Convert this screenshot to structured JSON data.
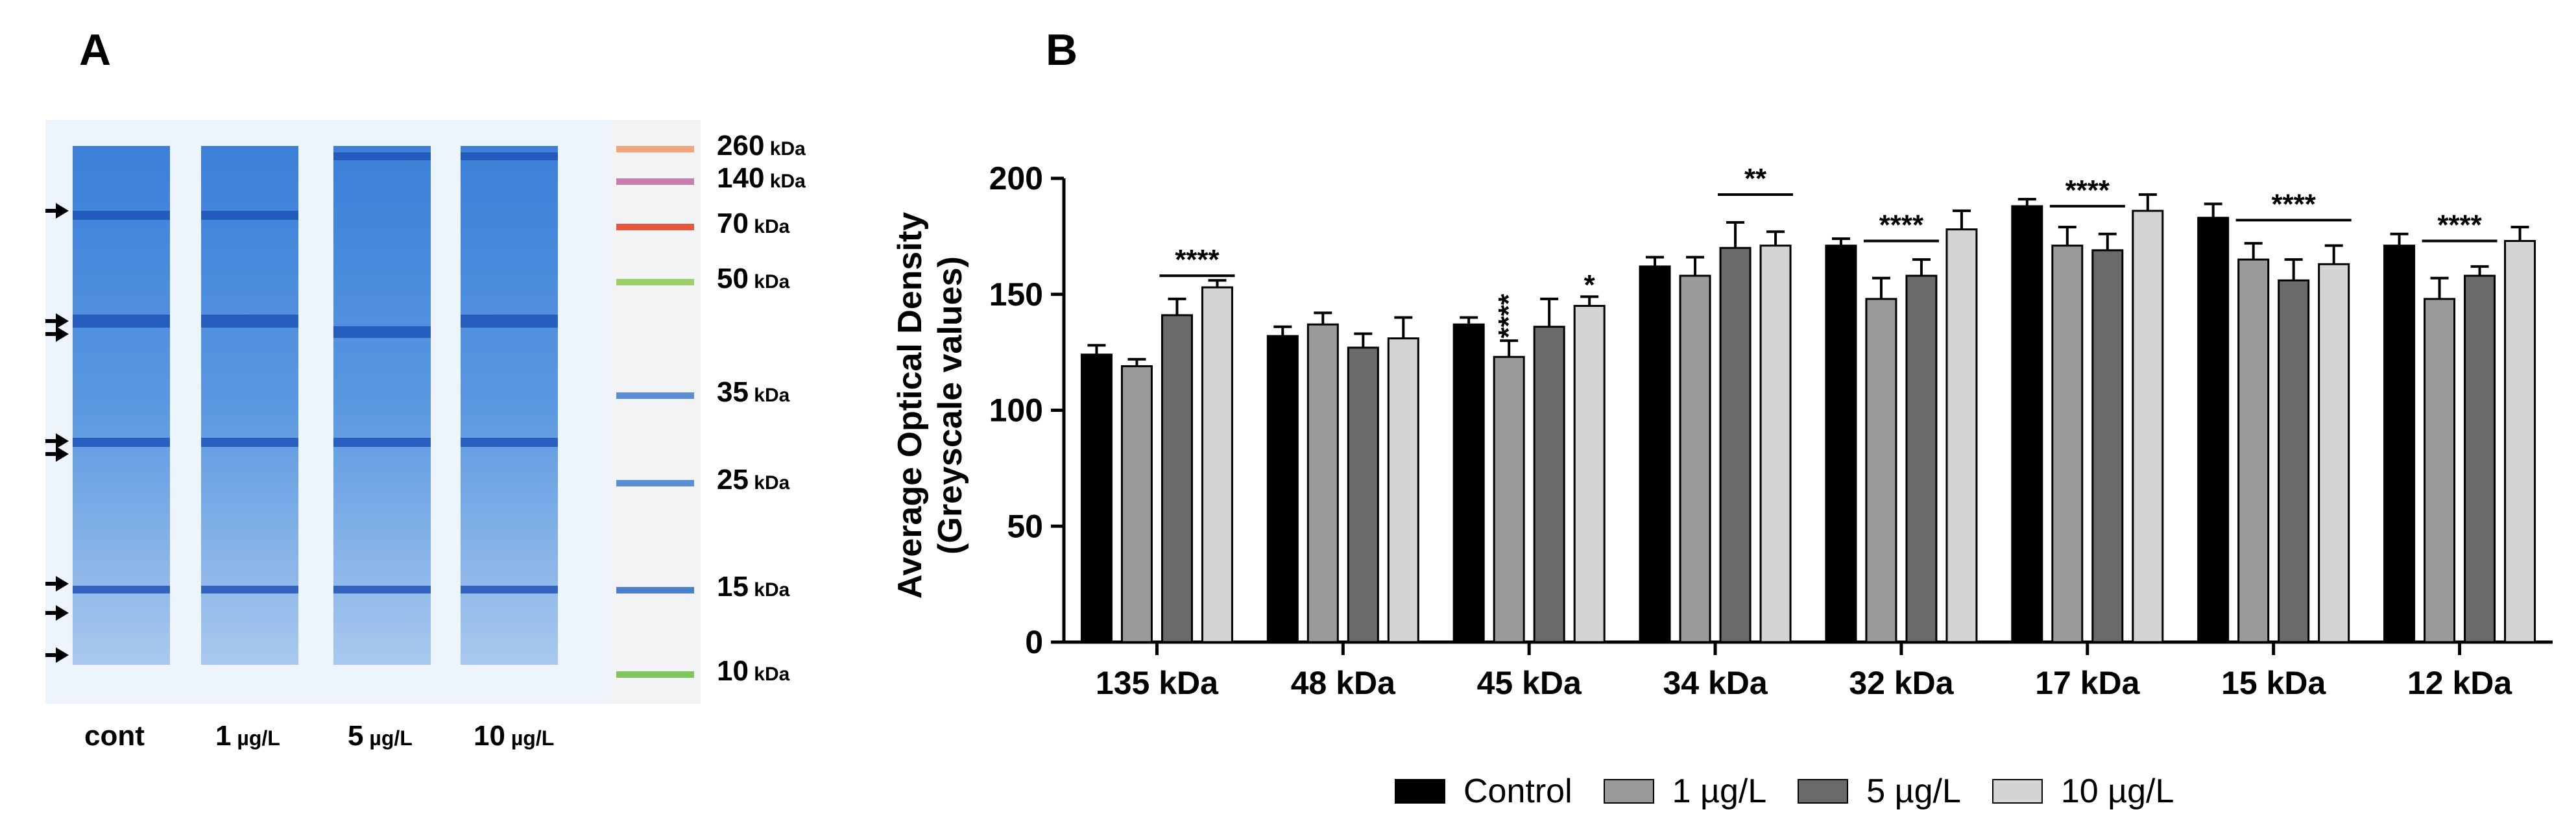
{
  "panels": {
    "a_label": "A",
    "b_label": "B"
  },
  "gel": {
    "marker_bands": [
      {
        "size": "260",
        "unit": "kDa",
        "color": "#f4a47a"
      },
      {
        "size": "140",
        "unit": "kDa",
        "color": "#c77bb0"
      },
      {
        "size": "70",
        "unit": "kDa",
        "color": "#e8573a"
      },
      {
        "size": "50",
        "unit": "kDa",
        "color": "#9fcf6a"
      },
      {
        "size": "35",
        "unit": "kDa",
        "color": "#5a8fd6"
      },
      {
        "size": "25",
        "unit": "kDa",
        "color": "#5a8fd6"
      },
      {
        "size": "15",
        "unit": "kDa",
        "color": "#4a7fcc"
      },
      {
        "size": "10",
        "unit": "kDa",
        "color": "#7cc85a"
      }
    ],
    "lanes": [
      {
        "label": "cont",
        "unit": ""
      },
      {
        "label": "1",
        "unit": "µg/L"
      },
      {
        "label": "5",
        "unit": "µg/L"
      },
      {
        "label": "10",
        "unit": "µg/L"
      }
    ],
    "arrow_count": 8
  },
  "chart_data": {
    "type": "bar",
    "ylabel_line1": "Average Optical Density",
    "ylabel_line2": "(Greyscale values)",
    "ylim": [
      0,
      200
    ],
    "yticks": [
      "0",
      "50",
      "100",
      "150",
      "200"
    ],
    "categories": [
      "135 kDa",
      "48 kDa",
      "45 kDa",
      "34 kDa",
      "32 kDa",
      "17 kDa",
      "15 kDa",
      "12 kDa"
    ],
    "series": [
      {
        "name": "Control",
        "color": "#000000",
        "values": [
          124,
          132,
          137,
          162,
          171,
          188,
          183,
          171
        ],
        "errors": [
          4,
          4,
          3,
          4,
          3,
          3,
          6,
          5
        ]
      },
      {
        "name": "1 µg/L",
        "color": "#9a9a9a",
        "values": [
          119,
          137,
          123,
          158,
          148,
          171,
          165,
          148
        ],
        "errors": [
          3,
          5,
          7,
          8,
          9,
          8,
          7,
          9
        ]
      },
      {
        "name": "5 µg/L",
        "color": "#6a6a6a",
        "values": [
          141,
          127,
          136,
          170,
          158,
          169,
          156,
          158
        ],
        "errors": [
          7,
          6,
          12,
          11,
          7,
          7,
          9,
          4
        ]
      },
      {
        "name": "10 µg/L",
        "color": "#d4d4d4",
        "values": [
          153,
          131,
          145,
          171,
          178,
          186,
          163,
          173
        ],
        "errors": [
          3,
          9,
          4,
          6,
          8,
          7,
          8,
          6
        ]
      }
    ],
    "significance": [
      {
        "category": 0,
        "text": "****",
        "type": "bracket",
        "from": 2,
        "to": 3,
        "y": 158
      },
      {
        "category": 2,
        "text": "****",
        "type": "vertical",
        "bar": 1,
        "y": 131
      },
      {
        "category": 2,
        "text": "*",
        "type": "above",
        "bar": 3,
        "y": 150
      },
      {
        "category": 3,
        "text": "**",
        "type": "bracket",
        "from": 2,
        "to": 3,
        "y": 193
      },
      {
        "category": 4,
        "text": "****",
        "type": "bracket",
        "from": 1,
        "to": 2,
        "y": 173
      },
      {
        "category": 5,
        "text": "****",
        "type": "bracket",
        "from": 1,
        "to": 2,
        "y": 188
      },
      {
        "category": 6,
        "text": "****",
        "type": "bracket",
        "from": 1,
        "to": 3,
        "y": 182
      },
      {
        "category": 7,
        "text": "****",
        "type": "bracket",
        "from": 1,
        "to": 2,
        "y": 173
      }
    ]
  }
}
